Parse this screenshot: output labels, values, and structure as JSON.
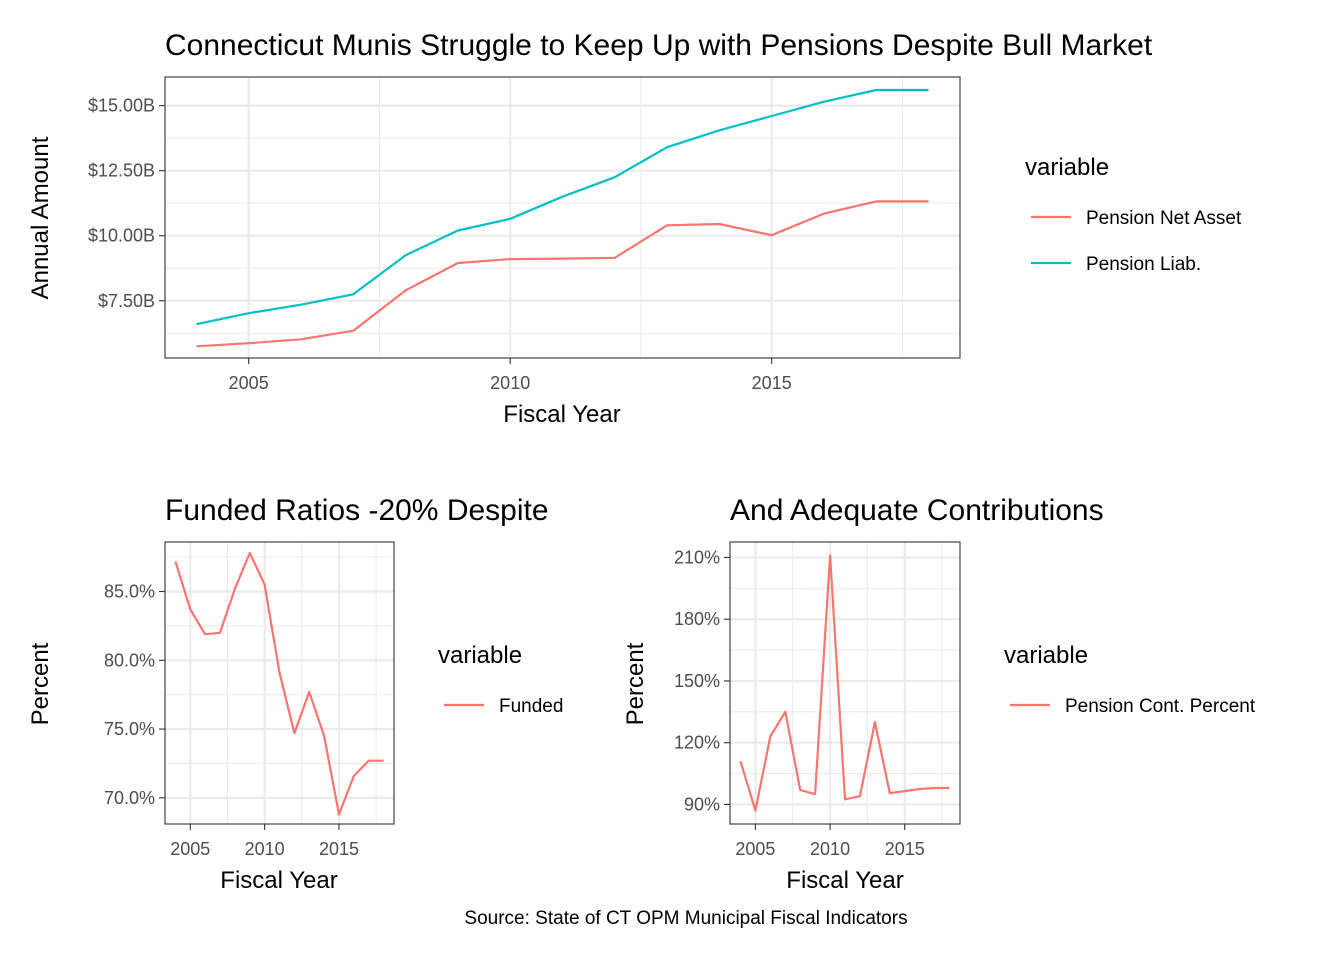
{
  "colors": {
    "red": "#F8766D",
    "teal": "#00BFC4"
  },
  "caption": "Source: State of CT OPM Municipal Fiscal Indicators",
  "chart_data": [
    {
      "type": "line",
      "title": "Connecticut Munis Struggle to Keep Up with Pensions Despite Bull Market",
      "xlabel": "Fiscal Year",
      "ylabel": "Annual Amount",
      "xlim": [
        2003.4,
        2018.6
      ],
      "ylim": [
        5.3,
        16.1
      ],
      "x_ticks": [
        2005,
        2010,
        2015
      ],
      "x_tick_labels": [
        "2005",
        "2010",
        "2015"
      ],
      "y_ticks": [
        7.5,
        10,
        12.5,
        15
      ],
      "y_tick_labels": [
        "$7.50B",
        "$10.00B",
        "$12.50B",
        "$15.00B"
      ],
      "legend_title": "variable",
      "legend_position": "right",
      "series": [
        {
          "name": "Pension Net Asset",
          "color": "#F8766D",
          "x": [
            2004,
            2005,
            2006,
            2007,
            2008,
            2009,
            2010,
            2011,
            2012,
            2013,
            2014,
            2015,
            2016,
            2017,
            2018
          ],
          "y": [
            5.75,
            5.87,
            6.02,
            6.35,
            7.9,
            8.95,
            9.1,
            9.12,
            9.15,
            10.4,
            10.45,
            10.02,
            10.85,
            11.32,
            11.32
          ]
        },
        {
          "name": "Pension Liab.",
          "color": "#00BFC4",
          "x": [
            2004,
            2005,
            2006,
            2007,
            2008,
            2009,
            2010,
            2011,
            2012,
            2013,
            2014,
            2015,
            2016,
            2017,
            2018
          ],
          "y": [
            6.6,
            7.02,
            7.35,
            7.75,
            9.25,
            10.2,
            10.65,
            11.5,
            12.25,
            13.4,
            14.05,
            14.6,
            15.15,
            15.6,
            15.6
          ]
        }
      ]
    },
    {
      "type": "line",
      "title": "Funded Ratios -20% Despite",
      "xlabel": "Fiscal Year",
      "ylabel": "Percent",
      "xlim": [
        2003.3,
        2018.7
      ],
      "ylim": [
        68.1,
        88.6
      ],
      "x_ticks": [
        2005,
        2010,
        2015
      ],
      "x_tick_labels": [
        "2005",
        "2010",
        "2015"
      ],
      "y_ticks": [
        70,
        75,
        80,
        85
      ],
      "y_tick_labels": [
        "70.0%",
        "75.0%",
        "80.0%",
        "85.0%"
      ],
      "legend_title": "variable",
      "legend_position": "right",
      "series": [
        {
          "name": "Funded",
          "color": "#F8766D",
          "x": [
            2004,
            2005,
            2006,
            2007,
            2008,
            2009,
            2010,
            2011,
            2012,
            2013,
            2014,
            2015,
            2016,
            2017,
            2018
          ],
          "y": [
            87.2,
            83.7,
            81.9,
            82.0,
            85.2,
            87.8,
            85.5,
            79.1,
            74.7,
            77.7,
            74.5,
            68.8,
            71.6,
            72.7,
            72.7
          ]
        }
      ]
    },
    {
      "type": "line",
      "title": "And Adequate Contributions",
      "xlabel": "Fiscal Year",
      "ylabel": "Percent",
      "xlim": [
        2003.3,
        2018.7
      ],
      "ylim": [
        80.5,
        217.5
      ],
      "x_ticks": [
        2005,
        2010,
        2015
      ],
      "x_tick_labels": [
        "2005",
        "2010",
        "2015"
      ],
      "y_ticks": [
        90,
        120,
        150,
        180,
        210
      ],
      "y_tick_labels": [
        "90%",
        "120%",
        "150%",
        "180%",
        "210%"
      ],
      "legend_title": "variable",
      "legend_position": "right",
      "series": [
        {
          "name": "Pension Cont. Percent",
          "color": "#F8766D",
          "x": [
            2004,
            2005,
            2006,
            2007,
            2008,
            2009,
            2010,
            2011,
            2012,
            2013,
            2014,
            2015,
            2016,
            2017,
            2018
          ],
          "y": [
            111,
            87,
            123,
            135,
            97,
            95,
            211,
            92.5,
            94,
            130,
            95.5,
            96.5,
            97.5,
            98,
            98
          ]
        }
      ]
    }
  ]
}
